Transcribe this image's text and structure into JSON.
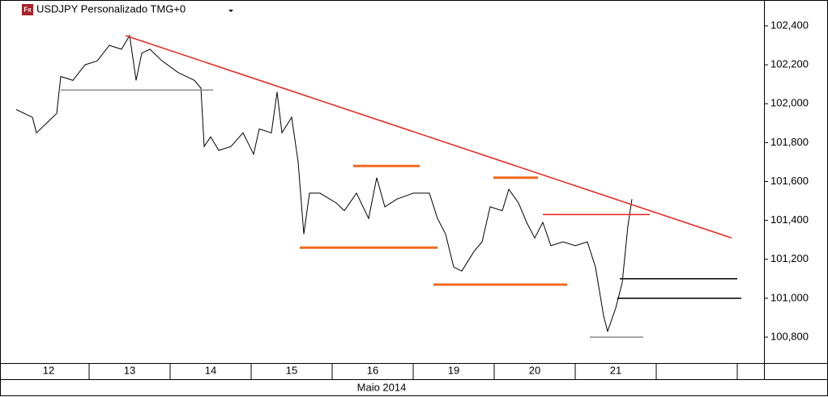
{
  "chart_data": {
    "type": "line",
    "title": "USDJPY Personalizado TMG+0",
    "icon_text": "Fx",
    "x_label": "Maio 2014",
    "categories": [
      "12",
      "13",
      "14",
      "15",
      "16",
      "19",
      "20",
      "21"
    ],
    "color": "#000000",
    "x": [
      0.1,
      0.3,
      0.35,
      0.5,
      0.6,
      0.65,
      0.8,
      0.95,
      1.1,
      1.25,
      1.4,
      1.5,
      1.58,
      1.65,
      1.75,
      1.9,
      2.1,
      2.3,
      2.38,
      2.42,
      2.5,
      2.6,
      2.75,
      2.9,
      3.03,
      3.1,
      3.25,
      3.32,
      3.38,
      3.5,
      3.58,
      3.65,
      3.72,
      3.85,
      4.05,
      4.15,
      4.3,
      4.45,
      4.55,
      4.65,
      4.8,
      5.0,
      5.2,
      5.3,
      5.4,
      5.5,
      5.6,
      5.75,
      5.85,
      5.95,
      6.1,
      6.18,
      6.3,
      6.4,
      6.5,
      6.6,
      6.7,
      6.85,
      7.0,
      7.15,
      7.25,
      7.35,
      7.4,
      7.5,
      7.58,
      7.65,
      7.7
    ],
    "values": [
      101.97,
      101.93,
      101.85,
      101.91,
      101.95,
      102.14,
      102.12,
      102.2,
      102.22,
      102.3,
      102.28,
      102.35,
      102.12,
      102.26,
      102.28,
      102.22,
      102.16,
      102.12,
      102.08,
      101.78,
      101.83,
      101.76,
      101.78,
      101.85,
      101.74,
      101.87,
      101.85,
      102.06,
      101.85,
      101.93,
      101.7,
      101.33,
      101.54,
      101.54,
      101.49,
      101.45,
      101.54,
      101.41,
      101.62,
      101.47,
      101.51,
      101.54,
      101.54,
      101.41,
      101.33,
      101.16,
      101.14,
      101.24,
      101.29,
      101.47,
      101.45,
      101.56,
      101.49,
      101.39,
      101.31,
      101.39,
      101.27,
      101.29,
      101.27,
      101.29,
      101.16,
      100.91,
      100.83,
      100.95,
      101.08,
      101.37,
      101.51
    ],
    "xlim": [
      -0.1,
      9.33
    ],
    "ylim": [
      100.667,
      102.533
    ],
    "yticks": [
      {
        "value": 100.8,
        "label": "100,800"
      },
      {
        "value": 101.0,
        "label": "101,000"
      },
      {
        "value": 101.2,
        "label": "101,200"
      },
      {
        "value": 101.4,
        "label": "101,400"
      },
      {
        "value": 101.6,
        "label": "101,600"
      },
      {
        "value": 101.8,
        "label": "101,800"
      },
      {
        "value": 102.0,
        "label": "102,000"
      },
      {
        "value": 102.2,
        "label": "102,200"
      },
      {
        "value": 102.4,
        "label": "102,400"
      }
    ],
    "annotations": [
      {
        "x1": 1.45,
        "y1": 102.35,
        "x2": 8.93,
        "y2": 101.31,
        "color": "#e8201a"
      },
      {
        "x1": 0.65,
        "y1": 102.07,
        "x2": 2.53,
        "y2": 102.07,
        "color": "#888888"
      },
      {
        "x1": 4.26,
        "y1": 101.68,
        "x2": 5.08,
        "y2": 101.68,
        "color": "#f06a1e"
      },
      {
        "x1": 3.6,
        "y1": 101.26,
        "x2": 5.3,
        "y2": 101.26,
        "color": "#f06a1e"
      },
      {
        "x1": 5.99,
        "y1": 101.62,
        "x2": 6.54,
        "y2": 101.62,
        "color": "#f06a1e"
      },
      {
        "x1": 5.25,
        "y1": 101.07,
        "x2": 6.9,
        "y2": 101.07,
        "color": "#f06a1e"
      },
      {
        "x1": 6.6,
        "y1": 101.43,
        "x2": 7.92,
        "y2": 101.43,
        "color": "#e8201a"
      },
      {
        "x1": 7.55,
        "y1": 101.1,
        "x2": 9.0,
        "y2": 101.1,
        "color": "#000000"
      },
      {
        "x1": 7.52,
        "y1": 101.0,
        "x2": 9.05,
        "y2": 101.0,
        "color": "#000000"
      },
      {
        "x1": 7.18,
        "y1": 100.8,
        "x2": 7.84,
        "y2": 100.8,
        "color": "#888888"
      }
    ]
  }
}
